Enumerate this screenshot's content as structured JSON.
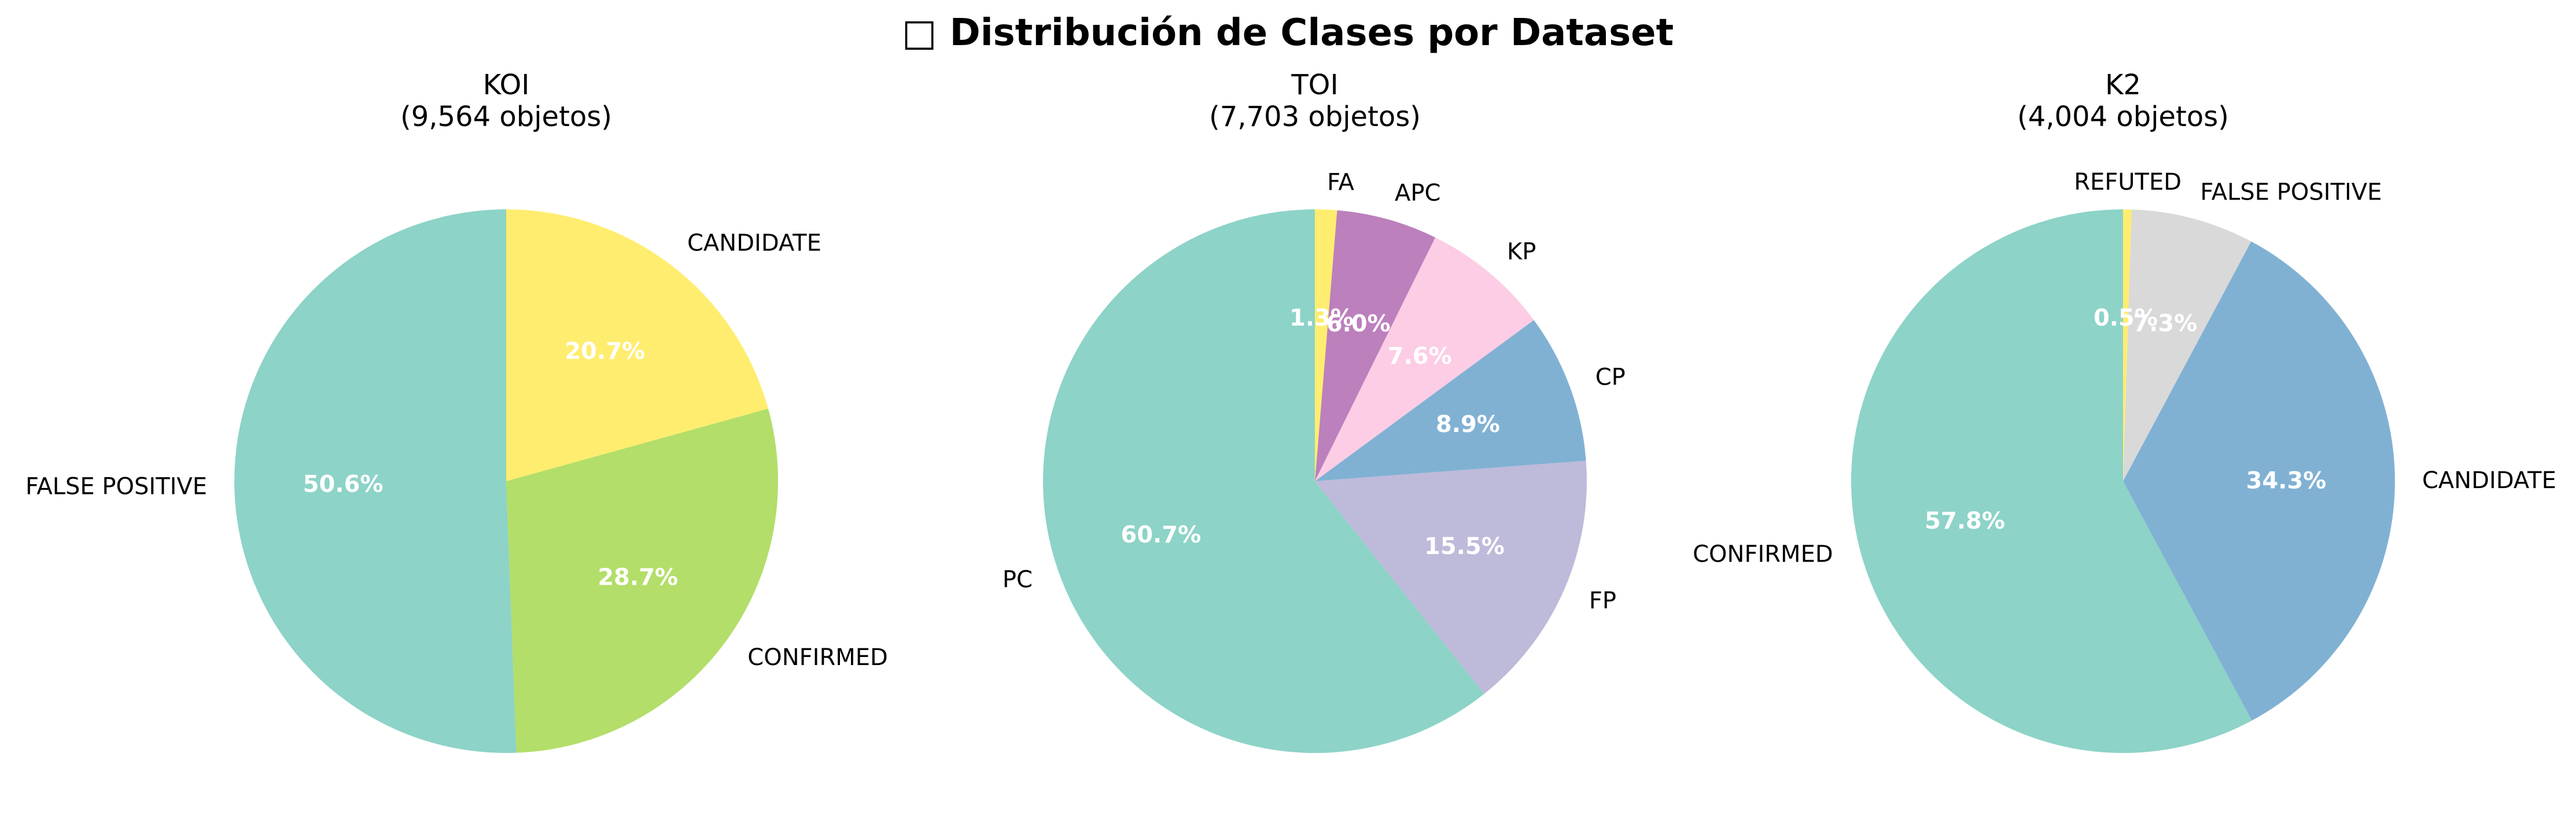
{
  "figure": {
    "title": "□ Distribución de Clases por Dataset"
  },
  "chart_data": [
    {
      "type": "pie",
      "title": "KOI",
      "subtitle": "(9,564 objetos)",
      "start_angle": 90,
      "direction": "counterclockwise",
      "slices": [
        {
          "label": "FALSE POSITIVE",
          "percent": 50.6,
          "pct_label": "50.6%",
          "color": "#8dd3c7"
        },
        {
          "label": "CONFIRMED",
          "percent": 28.7,
          "pct_label": "28.7%",
          "color": "#b3de69"
        },
        {
          "label": "CANDIDATE",
          "percent": 20.7,
          "pct_label": "20.7%",
          "color": "#ffed6f"
        }
      ]
    },
    {
      "type": "pie",
      "title": "TOI",
      "subtitle": "(7,703 objetos)",
      "start_angle": 90,
      "direction": "counterclockwise",
      "slices": [
        {
          "label": "PC",
          "percent": 60.7,
          "pct_label": "60.7%",
          "color": "#8dd3c7"
        },
        {
          "label": "FP",
          "percent": 15.5,
          "pct_label": "15.5%",
          "color": "#bebada"
        },
        {
          "label": "CP",
          "percent": 8.9,
          "pct_label": "8.9%",
          "color": "#80b1d3"
        },
        {
          "label": "KP",
          "percent": 7.6,
          "pct_label": "7.6%",
          "color": "#fccde5"
        },
        {
          "label": "APC",
          "percent": 6.0,
          "pct_label": "6.0%",
          "color": "#bc80bd"
        },
        {
          "label": "FA",
          "percent": 1.3,
          "pct_label": "1.3%",
          "color": "#ffed6f"
        }
      ]
    },
    {
      "type": "pie",
      "title": "K2",
      "subtitle": "(4,004 objetos)",
      "start_angle": 90,
      "direction": "counterclockwise",
      "slices": [
        {
          "label": "CONFIRMED",
          "percent": 57.8,
          "pct_label": "57.8%",
          "color": "#8dd3c7"
        },
        {
          "label": "CANDIDATE",
          "percent": 34.3,
          "pct_label": "34.3%",
          "color": "#80b1d3"
        },
        {
          "label": "FALSE POSITIVE",
          "percent": 7.3,
          "pct_label": "7.3%",
          "color": "#d9d9d9"
        },
        {
          "label": "REFUTED",
          "percent": 0.5,
          "pct_label": "0.5%",
          "color": "#ffed6f"
        }
      ]
    }
  ]
}
